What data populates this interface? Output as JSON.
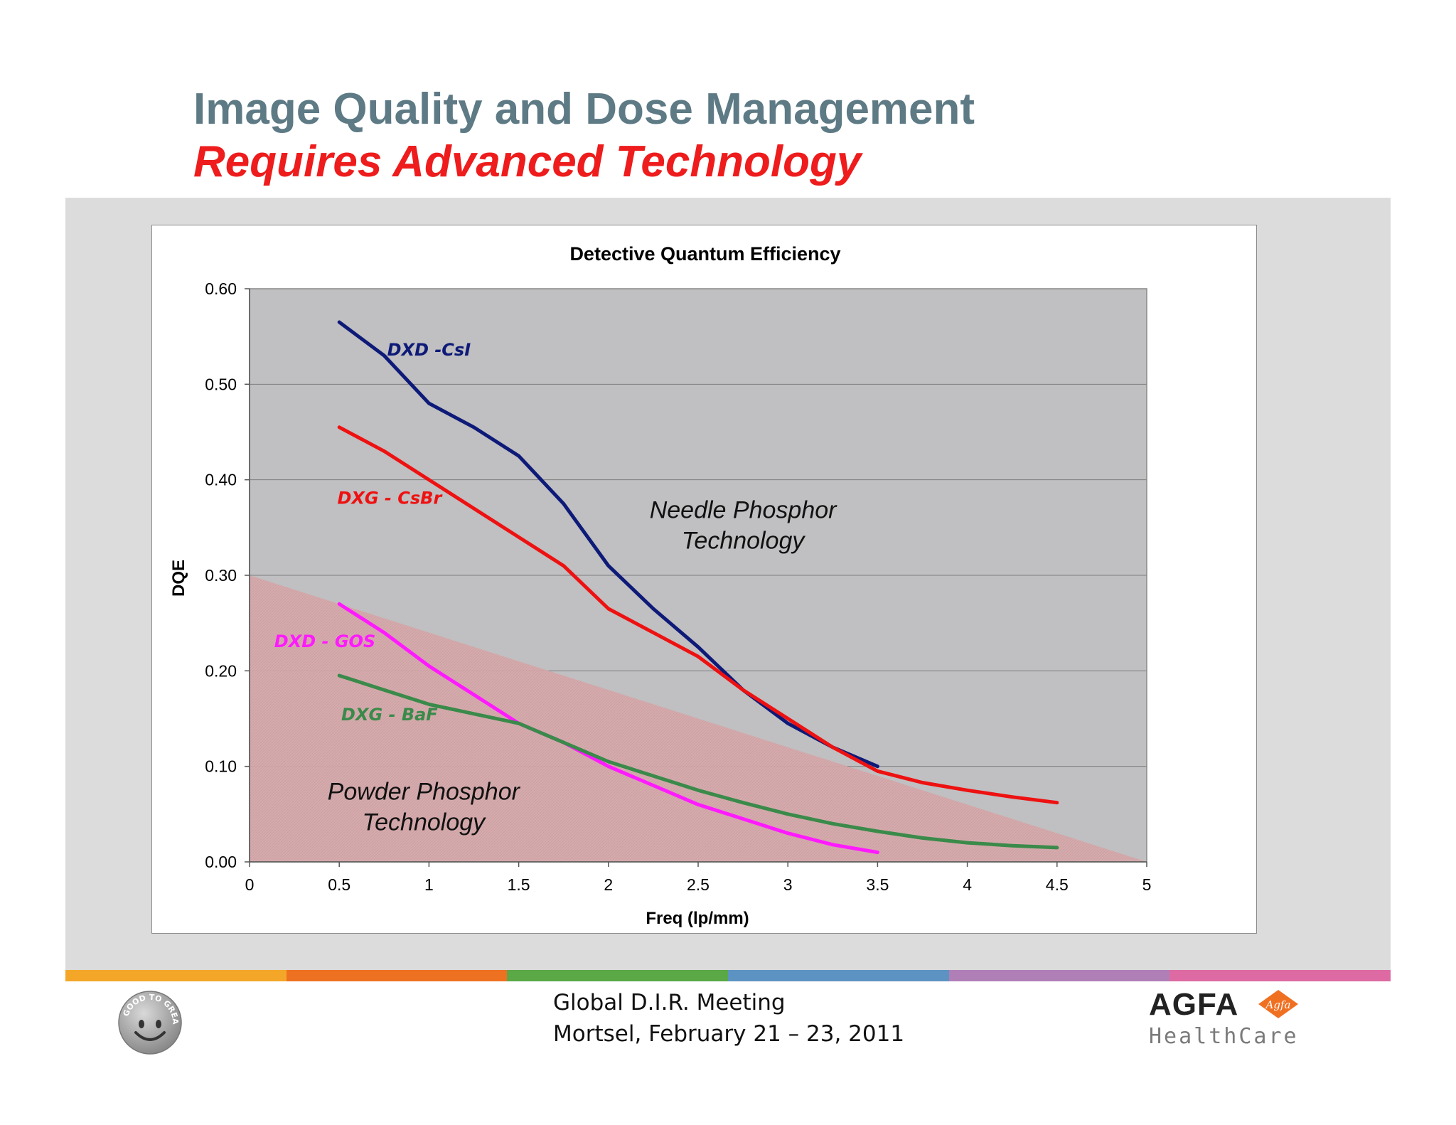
{
  "header": {
    "title": "Image Quality and Dose Management",
    "subtitle": "Requires Advanced Technology"
  },
  "chart_data": {
    "type": "line",
    "title": "Detective Quantum Efficiency",
    "xlabel": "Freq (lp/mm)",
    "ylabel": "DQE",
    "xlim": [
      0,
      5
    ],
    "ylim": [
      0,
      0.6
    ],
    "x_ticks": [
      "0",
      "0.5",
      "1",
      "1.5",
      "2",
      "2.5",
      "3",
      "3.5",
      "4",
      "4.5",
      "5"
    ],
    "y_ticks": [
      "0.00",
      "0.10",
      "0.20",
      "0.30",
      "0.40",
      "0.50",
      "0.60"
    ],
    "grid": true,
    "legend": "none (inline labels)",
    "series": [
      {
        "name": "DXD -CsI",
        "color": "#0d1a78",
        "x": [
          0.5,
          0.75,
          1.0,
          1.25,
          1.5,
          1.75,
          2.0,
          2.25,
          2.5,
          2.75,
          3.0,
          3.25,
          3.5
        ],
        "y": [
          0.565,
          0.53,
          0.48,
          0.455,
          0.425,
          0.375,
          0.31,
          0.265,
          0.225,
          0.18,
          0.145,
          0.12,
          0.1
        ]
      },
      {
        "name": "DXG - CsBr",
        "color": "#ee1111",
        "x": [
          0.5,
          0.75,
          1.0,
          1.25,
          1.5,
          1.75,
          2.0,
          2.25,
          2.5,
          2.75,
          3.0,
          3.25,
          3.5,
          3.75,
          4.0,
          4.25,
          4.5
        ],
        "y": [
          0.455,
          0.43,
          0.4,
          0.37,
          0.34,
          0.31,
          0.265,
          0.24,
          0.215,
          0.18,
          0.15,
          0.12,
          0.095,
          0.083,
          0.075,
          0.068,
          0.062
        ]
      },
      {
        "name": "DXD - GOS",
        "color": "#ff1aff",
        "x": [
          0.5,
          0.75,
          1.0,
          1.25,
          1.5,
          1.75,
          2.0,
          2.25,
          2.5,
          2.75,
          3.0,
          3.25,
          3.5
        ],
        "y": [
          0.27,
          0.24,
          0.205,
          0.175,
          0.145,
          0.125,
          0.1,
          0.08,
          0.06,
          0.045,
          0.03,
          0.018,
          0.01
        ]
      },
      {
        "name": "DXG - BaF",
        "color": "#3a8a4a",
        "x": [
          0.5,
          0.75,
          1.0,
          1.25,
          1.5,
          1.75,
          2.0,
          2.25,
          2.5,
          2.75,
          3.0,
          3.25,
          3.5,
          3.75,
          4.0,
          4.25,
          4.5
        ],
        "y": [
          0.195,
          0.18,
          0.165,
          0.155,
          0.145,
          0.125,
          0.105,
          0.09,
          0.075,
          0.062,
          0.05,
          0.04,
          0.032,
          0.025,
          0.02,
          0.017,
          0.015
        ]
      }
    ],
    "regions": [
      {
        "label": "Needle Phosphor Technology",
        "color": "#c0bfc1"
      },
      {
        "label": "Powder Phosphor Technology",
        "color": "#d4a9ab",
        "boundary_x": [
          0,
          5
        ],
        "boundary_y": [
          0.3,
          0
        ]
      }
    ]
  },
  "footer": {
    "line1": "Global D.I.R. Meeting",
    "line2": "Mortsel, February 21 – 23,  2011",
    "color_stripes": [
      "#f3a628",
      "#ee7122",
      "#5aa846",
      "#5d93c2",
      "#b07fb8",
      "#de6aa3"
    ]
  },
  "logos": {
    "smiley_text": "GOOD TO GREAT",
    "brand": "AGFA",
    "brand_badge": "Agfa",
    "brand_sub": "HealthCare"
  }
}
